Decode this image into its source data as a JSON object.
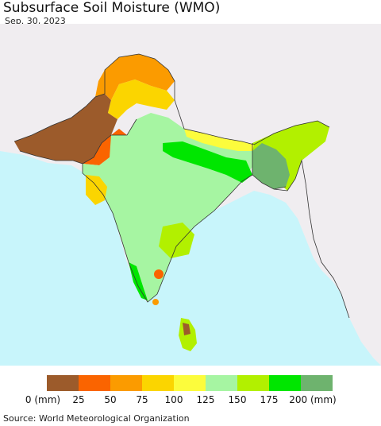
{
  "title": "Subsurface Soil Moisture (WMO)",
  "date": "Sep. 30, 2023",
  "source": "Source: World Meteorological Organization",
  "colors": {
    "ocean": "#c8f5fb",
    "land_outside": "#f0edf0",
    "border": "#333333"
  },
  "legend": {
    "colors": [
      "#9c5b2b",
      "#fa6400",
      "#fb9b00",
      "#fbd500",
      "#fcfc3c",
      "#a6f5a2",
      "#b2f000",
      "#00e600",
      "#6eb36e"
    ],
    "labels": [
      "0 (mm)",
      "25",
      "50",
      "75",
      "100",
      "125",
      "150",
      "175",
      "200 (mm)"
    ]
  }
}
